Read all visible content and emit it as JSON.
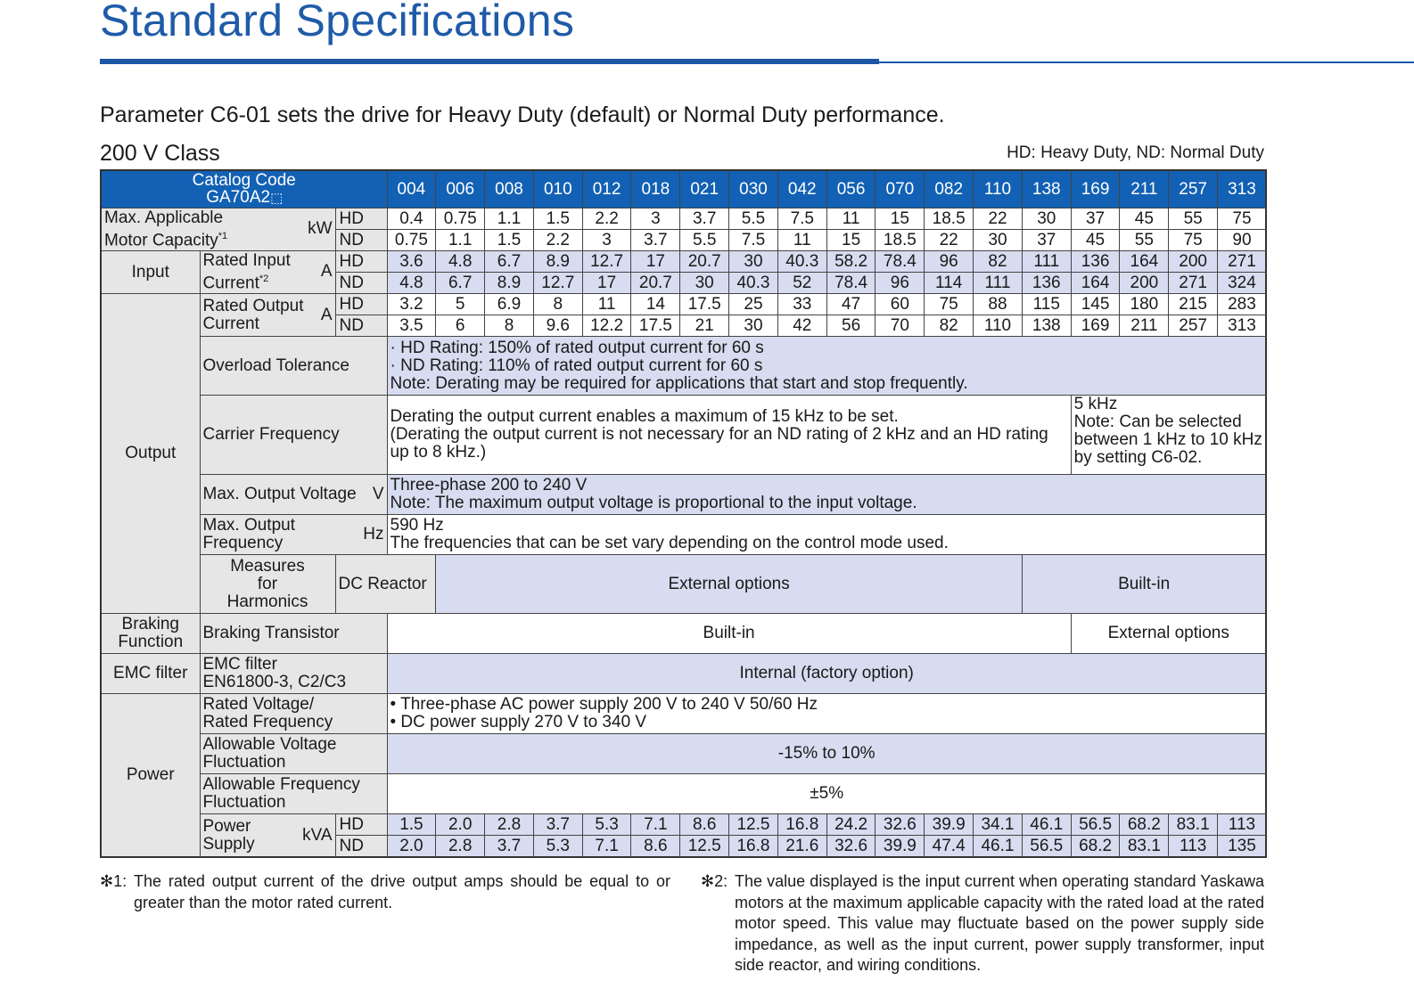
{
  "title": "Standard Specifications",
  "intro": "Parameter C6-01 sets the drive for Heavy Duty (default) or Normal Duty performance.",
  "class_label": "200 V Class",
  "legend": "HD: Heavy Duty, ND: Normal Duty",
  "header": {
    "catalog_line1": "Catalog Code",
    "catalog_line2": "GA70A2",
    "codes": [
      "004",
      "006",
      "008",
      "010",
      "012",
      "018",
      "021",
      "030",
      "042",
      "056",
      "070",
      "082",
      "110",
      "138",
      "169",
      "211",
      "257",
      "313"
    ]
  },
  "duty": {
    "hd": "HD",
    "nd": "ND"
  },
  "rows": {
    "motor": {
      "label1": "Max. Applicable",
      "label2": "Motor Capacity",
      "mark": "*1",
      "unit": "kW",
      "hd": [
        "0.4",
        "0.75",
        "1.1",
        "1.5",
        "2.2",
        "3",
        "3.7",
        "5.5",
        "7.5",
        "11",
        "15",
        "18.5",
        "22",
        "30",
        "37",
        "45",
        "55",
        "75"
      ],
      "nd": [
        "0.75",
        "1.1",
        "1.5",
        "2.2",
        "3",
        "3.7",
        "5.5",
        "7.5",
        "11",
        "15",
        "18.5",
        "22",
        "30",
        "37",
        "45",
        "55",
        "75",
        "90"
      ]
    },
    "input": {
      "group": "Input",
      "label1": "Rated Input",
      "label2": "Current",
      "mark": "*2",
      "unit": "A",
      "hd": [
        "3.6",
        "4.8",
        "6.7",
        "8.9",
        "12.7",
        "17",
        "20.7",
        "30",
        "40.3",
        "58.2",
        "78.4",
        "96",
        "82",
        "111",
        "136",
        "164",
        "200",
        "271"
      ],
      "nd": [
        "4.8",
        "6.7",
        "8.9",
        "12.7",
        "17",
        "20.7",
        "30",
        "40.3",
        "52",
        "78.4",
        "96",
        "114",
        "111",
        "136",
        "164",
        "200",
        "271",
        "324"
      ]
    },
    "output": {
      "group": "Output",
      "current_label1": "Rated Output",
      "current_label2": "Current",
      "current_unit": "A",
      "hd": [
        "3.2",
        "5",
        "6.9",
        "8",
        "11",
        "14",
        "17.5",
        "25",
        "33",
        "47",
        "60",
        "75",
        "88",
        "115",
        "145",
        "180",
        "215",
        "283"
      ],
      "nd": [
        "3.5",
        "6",
        "8",
        "9.6",
        "12.2",
        "17.5",
        "21",
        "30",
        "42",
        "56",
        "70",
        "82",
        "110",
        "138",
        "169",
        "211",
        "257",
        "313"
      ],
      "overload_label": "Overload Tolerance",
      "overload_lines": [
        "· HD Rating: 150% of rated output current for 60 s",
        "· ND Rating: 110% of rated output current for 60 s",
        "Note: Derating may be required for applications that start and stop frequently."
      ],
      "carrier_label": "Carrier Frequency",
      "carrier_left": [
        "Derating the output current enables a maximum of 15 kHz to be set.",
        "(Derating the output current is not necessary for an ND rating of 2 kHz and an HD rating up to 8 kHz.)"
      ],
      "carrier_right": [
        "5 kHz",
        "Note: Can be selected between 1 kHz to 10 kHz by setting C6-02."
      ],
      "voltage_label": "Max. Output Voltage",
      "voltage_unit": "V",
      "voltage_lines": [
        "Three-phase 200 to 240 V",
        "Note: The maximum output voltage is proportional to the input voltage."
      ],
      "freq_label1": "Max. Output",
      "freq_label2": "Frequency",
      "freq_unit": "Hz",
      "freq_lines": [
        "590 Hz",
        "The frequencies that can be set vary depending on the control mode used."
      ]
    },
    "harmonics": {
      "group1": "Measures",
      "group2": "for",
      "group3": "Harmonics",
      "label": "DC Reactor",
      "left": "External options",
      "right": "Built-in"
    },
    "braking": {
      "group1": "Braking",
      "group2": "Function",
      "label": "Braking Transistor",
      "left": "Built-in",
      "right": "External options"
    },
    "emc": {
      "group": "EMC filter",
      "label1": "EMC filter",
      "label2": "EN61800-3, C2/C3",
      "value": "Internal (factory option)"
    },
    "power": {
      "group": "Power",
      "rated_label1": "Rated Voltage/",
      "rated_label2": "Rated Frequency",
      "rated_lines": [
        "• Three-phase AC power supply 200 V to 240 V  50/60 Hz",
        "• DC power supply 270 V to 340 V"
      ],
      "volt_fluct_label1": "Allowable Voltage",
      "volt_fluct_label2": "Fluctuation",
      "volt_fluct_value": "-15% to 10%",
      "freq_fluct_label1": "Allowable Frequency",
      "freq_fluct_label2": "Fluctuation",
      "freq_fluct_value": "±5%",
      "supply_label1": "Power",
      "supply_label2": "Supply",
      "supply_unit": "kVA",
      "hd": [
        "1.5",
        "2.0",
        "2.8",
        "3.7",
        "5.3",
        "7.1",
        "8.6",
        "12.5",
        "16.8",
        "24.2",
        "32.6",
        "39.9",
        "34.1",
        "46.1",
        "56.5",
        "68.2",
        "83.1",
        "113"
      ],
      "nd": [
        "2.0",
        "2.8",
        "3.7",
        "5.3",
        "7.1",
        "8.6",
        "12.5",
        "16.8",
        "21.6",
        "32.6",
        "39.9",
        "47.4",
        "46.1",
        "56.5",
        "68.2",
        "83.1",
        "113",
        "135"
      ]
    }
  },
  "footnotes": {
    "fn1_mark": "✻1:",
    "fn1": "The rated output current of the drive output amps should be equal to or greater than the motor rated current.",
    "fn2_mark": "✻2:",
    "fn2": "The value displayed is the input current when operating standard Yaskawa motors at the maximum applicable capacity with the rated load at the rated motor speed. This value may fluctuate based on the power supply side impedance, as well as the input current, power supply transformer, input side reactor, and wiring conditions."
  }
}
